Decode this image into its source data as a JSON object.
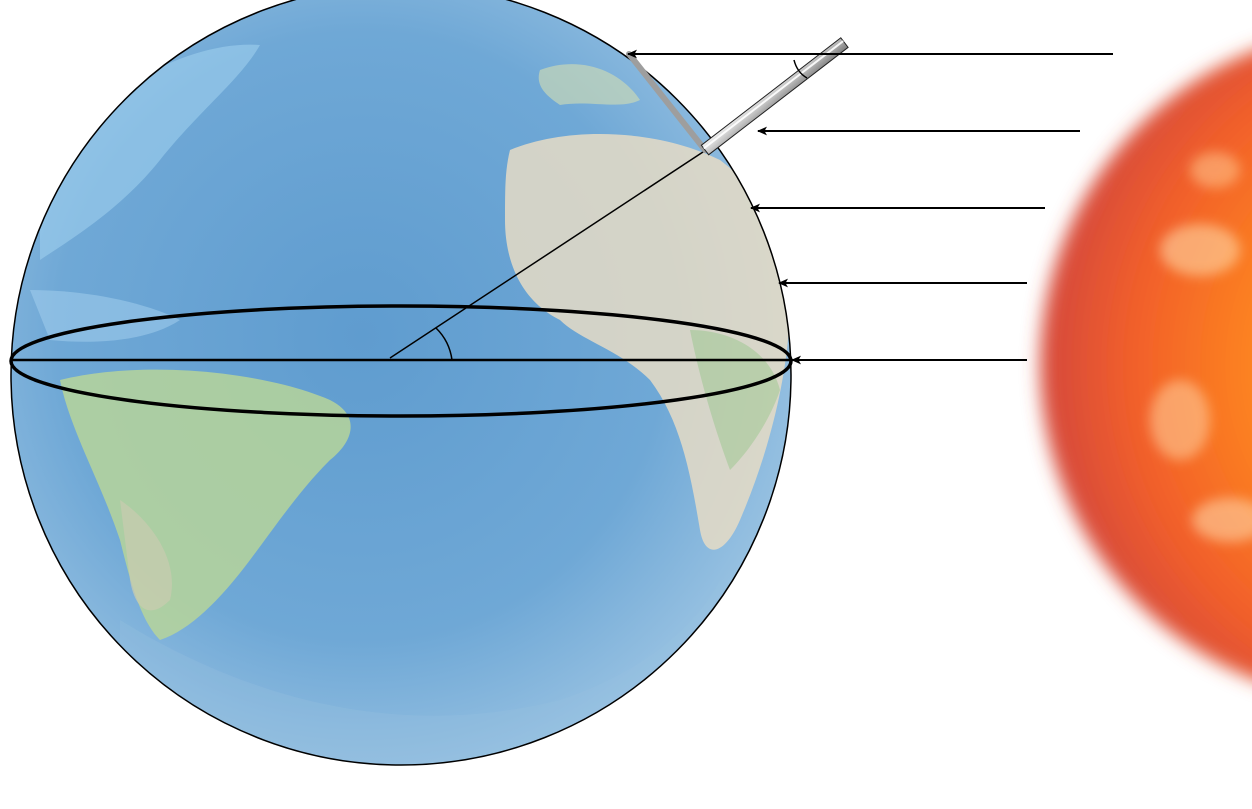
{
  "diagram": {
    "objects": [
      "earth-globe",
      "sun",
      "gnomon-rod",
      "equator-ellipse"
    ],
    "sun_rays": 5,
    "colors": {
      "ocean": "#7fb6dc",
      "ocean_deep": "#4f86b8",
      "land_green": "#a9c98a",
      "land_desert": "#e4d6c0",
      "sun_core": "#ff7a1a",
      "sun_edge": "#e0452a",
      "line": "#000000",
      "rod": "#b8b8b8",
      "shadow": "#9e9e9e"
    }
  }
}
